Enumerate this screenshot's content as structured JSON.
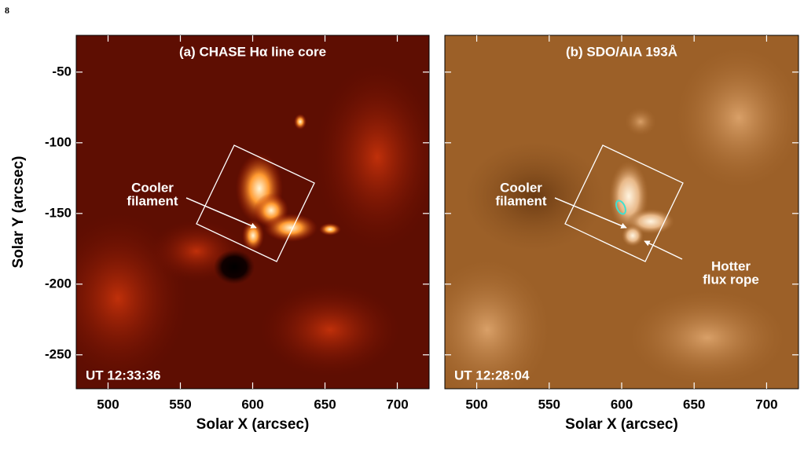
{
  "page_number": "8",
  "chart_data": [
    {
      "type": "image",
      "title": "(a) CHASE Hα line core",
      "timestamp": "UT 12:33:36",
      "xlabel": "Solar X (arcsec)",
      "ylabel": "Solar Y (arcsec)",
      "xlim": [
        478,
        722
      ],
      "ylim": [
        -274,
        -24
      ],
      "xticks": [
        500,
        550,
        600,
        650,
        700
      ],
      "yticks": [
        -50,
        -100,
        -150,
        -200,
        -250
      ],
      "annotations": [
        {
          "lines": [
            "Cooler",
            "filament"
          ]
        }
      ]
    },
    {
      "type": "image",
      "title": "(b) SDO/AIA 193Å",
      "timestamp": "UT 12:28:04",
      "xlabel": "Solar X (arcsec)",
      "xlim": [
        478,
        722
      ],
      "ylim": [
        -274,
        -24
      ],
      "xticks": [
        500,
        550,
        600,
        650,
        700
      ],
      "yticks": [
        -50,
        -100,
        -150,
        -200,
        -250
      ],
      "annotations": [
        {
          "lines": [
            "Cooler",
            "filament"
          ]
        },
        {
          "lines": [
            "Hotter",
            "flux rope"
          ]
        }
      ]
    }
  ]
}
